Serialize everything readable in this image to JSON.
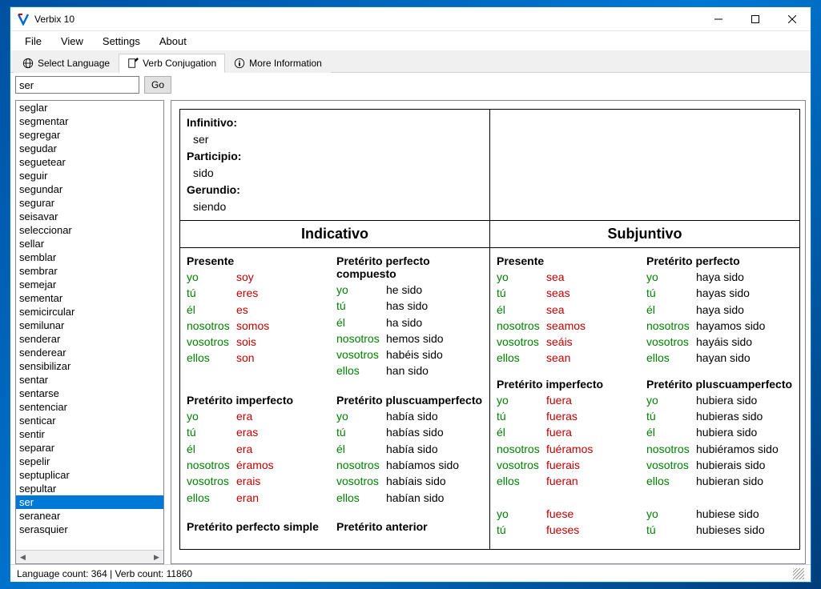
{
  "window": {
    "title": "Verbix 10"
  },
  "menubar": [
    "File",
    "View",
    "Settings",
    "About"
  ],
  "tabs": [
    {
      "label": "Select Language",
      "icon": "globe"
    },
    {
      "label": "Verb Conjugation",
      "icon": "edit",
      "active": true
    },
    {
      "label": "More Information",
      "icon": "info"
    }
  ],
  "search": {
    "value": "ser",
    "go_label": "Go"
  },
  "verb_list": {
    "items": [
      "seglar",
      "segmentar",
      "segregar",
      "segudar",
      "seguetear",
      "seguir",
      "segundar",
      "segurar",
      "seisavar",
      "seleccionar",
      "sellar",
      "semblar",
      "sembrar",
      "semejar",
      "sementar",
      "semicircular",
      "semilunar",
      "senderar",
      "senderear",
      "sensibilizar",
      "sentar",
      "sentarse",
      "sentenciar",
      "senticar",
      "sentir",
      "separar",
      "sepelir",
      "septuplicar",
      "sepultar",
      "ser",
      "seranear",
      "serasquier"
    ],
    "selected": "ser"
  },
  "conjugation": {
    "nominal": {
      "infinitivo_label": "Infinitivo:",
      "infinitivo": "ser",
      "participio_label": "Participio:",
      "participio": "sido",
      "gerundio_label": "Gerundio:",
      "gerundio": "siendo"
    },
    "moods": [
      {
        "title": "Indicativo",
        "tenses": [
          {
            "title": "Presente",
            "rows": [
              [
                "yo",
                "soy",
                "red"
              ],
              [
                "tú",
                "eres",
                "red"
              ],
              [
                "él",
                "es",
                "red"
              ],
              [
                "nosotros",
                "somos",
                "red"
              ],
              [
                "vosotros",
                "sois",
                "red"
              ],
              [
                "ellos",
                "son",
                "red"
              ]
            ]
          },
          {
            "title": "Pretérito perfecto compuesto",
            "rows": [
              [
                "yo",
                "he sido",
                "black"
              ],
              [
                "tú",
                "has sido",
                "black"
              ],
              [
                "él",
                "ha sido",
                "black"
              ],
              [
                "nosotros",
                "hemos sido",
                "black"
              ],
              [
                "vosotros",
                "habéis sido",
                "black"
              ],
              [
                "ellos",
                "han sido",
                "black"
              ]
            ]
          },
          {
            "title": "Pretérito imperfecto",
            "rows": [
              [
                "yo",
                "era",
                "red"
              ],
              [
                "tú",
                "eras",
                "red"
              ],
              [
                "él",
                "era",
                "red"
              ],
              [
                "nosotros",
                "éramos",
                "red"
              ],
              [
                "vosotros",
                "erais",
                "red"
              ],
              [
                "ellos",
                "eran",
                "red"
              ]
            ]
          },
          {
            "title": "Pretérito pluscuamperfecto",
            "rows": [
              [
                "yo",
                "había sido",
                "black"
              ],
              [
                "tú",
                "habías sido",
                "black"
              ],
              [
                "él",
                "había sido",
                "black"
              ],
              [
                "nosotros",
                "habíamos sido",
                "black"
              ],
              [
                "vosotros",
                "habíais sido",
                "black"
              ],
              [
                "ellos",
                "habían sido",
                "black"
              ]
            ]
          },
          {
            "title": "Pretérito perfecto simple",
            "rows": []
          },
          {
            "title": "Pretérito anterior",
            "rows": []
          }
        ]
      },
      {
        "title": "Subjuntivo",
        "tenses": [
          {
            "title": "Presente",
            "rows": [
              [
                "yo",
                "sea",
                "red"
              ],
              [
                "tú",
                "seas",
                "red"
              ],
              [
                "él",
                "sea",
                "red"
              ],
              [
                "nosotros",
                "seamos",
                "red"
              ],
              [
                "vosotros",
                "seáis",
                "red"
              ],
              [
                "ellos",
                "sean",
                "red"
              ]
            ]
          },
          {
            "title": "Pretérito perfecto",
            "rows": [
              [
                "yo",
                "haya sido",
                "black"
              ],
              [
                "tú",
                "hayas sido",
                "black"
              ],
              [
                "él",
                "haya sido",
                "black"
              ],
              [
                "nosotros",
                "hayamos sido",
                "black"
              ],
              [
                "vosotros",
                "hayáis sido",
                "black"
              ],
              [
                "ellos",
                "hayan sido",
                "black"
              ]
            ]
          },
          {
            "title": "Pretérito imperfecto",
            "rows": [
              [
                "yo",
                "fuera",
                "red"
              ],
              [
                "tú",
                "fueras",
                "red"
              ],
              [
                "él",
                "fuera",
                "red"
              ],
              [
                "nosotros",
                "fuéramos",
                "red"
              ],
              [
                "vosotros",
                "fuerais",
                "red"
              ],
              [
                "ellos",
                "fueran",
                "red"
              ],
              [
                "",
                ""
              ],
              [
                "yo",
                "fuese",
                "red"
              ],
              [
                "tú",
                "fueses",
                "red"
              ]
            ]
          },
          {
            "title": "Pretérito pluscuamperfecto",
            "rows": [
              [
                "yo",
                "hubiera sido",
                "black"
              ],
              [
                "tú",
                "hubieras sido",
                "black"
              ],
              [
                "él",
                "hubiera sido",
                "black"
              ],
              [
                "nosotros",
                "hubiéramos sido",
                "black"
              ],
              [
                "vosotros",
                "hubierais sido",
                "black"
              ],
              [
                "ellos",
                "hubieran sido",
                "black"
              ],
              [
                "",
                ""
              ],
              [
                "yo",
                "hubiese sido",
                "black"
              ],
              [
                "tú",
                "hubieses sido",
                "black"
              ]
            ]
          }
        ]
      }
    ]
  },
  "statusbar": {
    "text": "Language count: 364  |  Verb count: 11860"
  },
  "colors": {
    "pronoun": "#008000",
    "irregular": "#c00000",
    "regular": "#000000",
    "selection": "#0078d7",
    "window_border": "#0078d4"
  }
}
